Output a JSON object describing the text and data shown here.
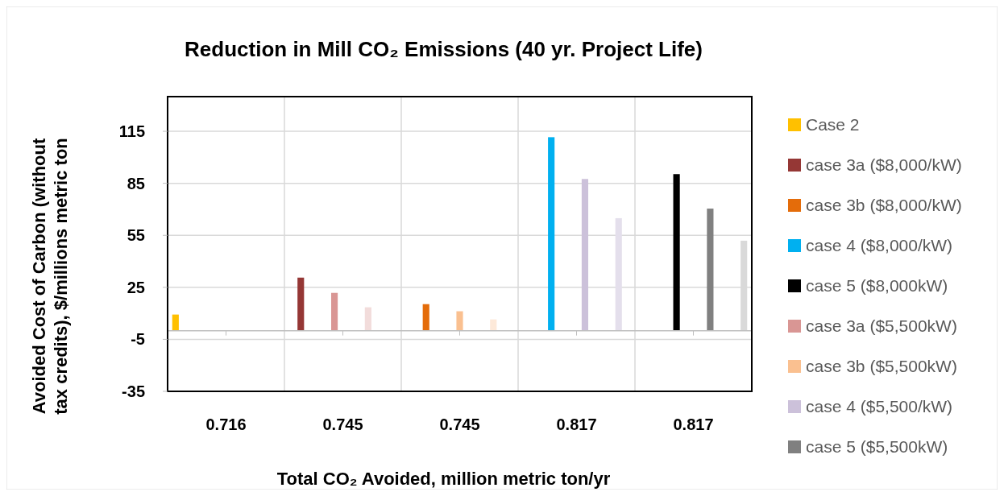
{
  "chart_data": {
    "type": "bar",
    "title": "Reduction in Mill CO₂ Emissions (40 yr. Project Life)",
    "xlabel": "Total CO₂ Avoided, million metric ton/yr",
    "ylabel": "Avoided Cost of Carbon (without\ntax credits), $/millions metric ton",
    "categories": [
      "0.716",
      "0.745",
      "0.745",
      "0.817",
      "0.817"
    ],
    "ylim": [
      -35,
      135
    ],
    "yticks": [
      -35,
      -5,
      25,
      55,
      85,
      115
    ],
    "grid": true,
    "legend": "right",
    "series": [
      {
        "name": "Case 2",
        "color": "#ffc000",
        "values": [
          9.3,
          null,
          null,
          null,
          null
        ]
      },
      {
        "name": "case 3a ($8,000/kW)",
        "color": "#953735",
        "values": [
          null,
          30.6,
          null,
          null,
          null
        ]
      },
      {
        "name": "case 3b ($8,000/kW)",
        "color": "#e46c0a",
        "values": [
          null,
          null,
          15.3,
          null,
          null
        ]
      },
      {
        "name": "case 4 ($8,000/kW)",
        "color": "#00b0f0",
        "values": [
          null,
          null,
          null,
          111.6,
          null
        ]
      },
      {
        "name": "case 5 ($8,000kW)",
        "color": "#000000",
        "values": [
          null,
          null,
          null,
          null,
          90.3
        ]
      },
      {
        "name": "case 3a ($5,500kW)",
        "color": "#d99694",
        "values": [
          null,
          21.8,
          null,
          null,
          null
        ]
      },
      {
        "name": "case 3b ($5,500kW)",
        "color": "#fac090",
        "values": [
          null,
          null,
          11.2,
          null,
          null
        ]
      },
      {
        "name": "case 4 ($5,500/kW)",
        "color": "#ccc1da",
        "values": [
          null,
          null,
          null,
          87.5,
          null
        ]
      },
      {
        "name": "case 5 ($5,500kW)",
        "color": "#808080",
        "values": [
          null,
          null,
          null,
          null,
          70.4
        ]
      },
      {
        "color": "#f2dcdb",
        "values": [
          null,
          13.5,
          null,
          null,
          null
        ]
      },
      {
        "color": "#fde9d9",
        "values": [
          null,
          null,
          6.5,
          null,
          null
        ]
      },
      {
        "color": "#e4dfec",
        "values": [
          null,
          null,
          null,
          64.9,
          null
        ]
      },
      {
        "color": "#d9d9d9",
        "values": [
          null,
          null,
          null,
          null,
          51.9
        ]
      }
    ]
  }
}
